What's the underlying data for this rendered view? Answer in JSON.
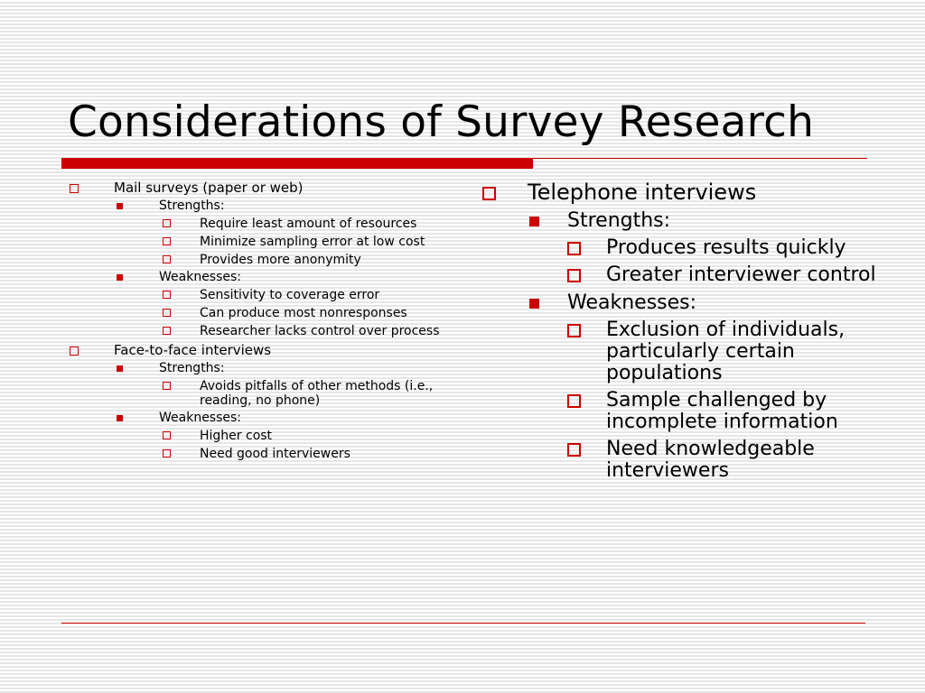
{
  "colors": {
    "accent": "#cc0000",
    "text": "#000000"
  },
  "slide": {
    "title": "Considerations of Survey Research",
    "left_column": [
      {
        "label": "Mail surveys (paper or web)",
        "strengths_label": "Strengths:",
        "strengths": [
          "Require least amount of resources",
          "Minimize sampling error at low cost",
          "Provides more anonymity"
        ],
        "weaknesses_label": "Weaknesses:",
        "weaknesses": [
          "Sensitivity to coverage error",
          "Can produce most nonresponses",
          "Researcher lacks control over process"
        ]
      },
      {
        "label": "Face-to-face interviews",
        "strengths_label": "Strengths:",
        "strengths": [
          "Avoids pitfalls of other methods (i.e., reading, no phone)"
        ],
        "weaknesses_label": "Weaknesses:",
        "weaknesses": [
          "Higher cost",
          "Need good interviewers"
        ]
      }
    ],
    "right_column": {
      "label": "Telephone interviews",
      "strengths_label": "Strengths:",
      "strengths": [
        "Produces results quickly",
        "Greater interviewer control"
      ],
      "weaknesses_label": "Weaknesses:",
      "weaknesses": [
        "Exclusion of individuals, particularly certain populations",
        "Sample challenged by incomplete information",
        "Need knowledgeable interviewers"
      ]
    }
  }
}
